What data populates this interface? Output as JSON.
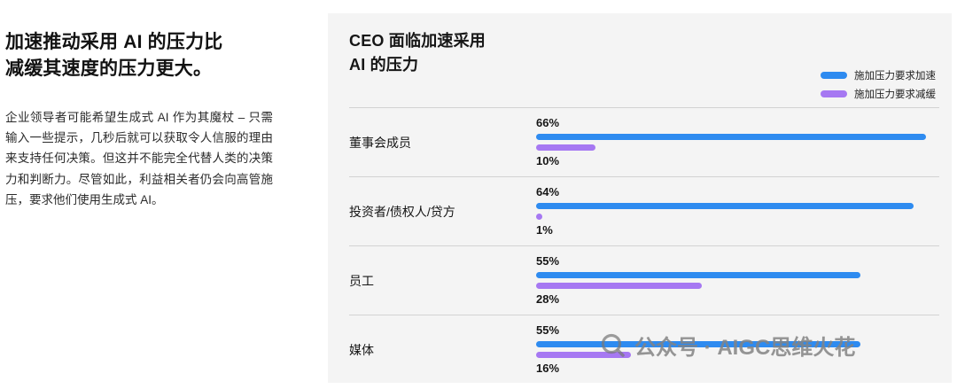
{
  "left_panel": {
    "heading": "加速推动采用 AI 的压力比\n减缓其速度的压力更大。",
    "body": "企业领导者可能希望生成式 AI 作为其魔杖 – 只需输入一些提示，几秒后就可以获取令人信服的理由来支持任何决策。但这并不能完全代替人类的决策力和判断力。尽管如此，利益相关者仍会向高管施压，要求他们使用生成式 AI。"
  },
  "chart": {
    "title": "CEO 面临加速采用\nAI 的压力",
    "panel_background": "#f4f4f4",
    "legend": [
      {
        "label": "施加压力要求加速",
        "color": "#2E8BF0"
      },
      {
        "label": "施加压力要求减缓",
        "color": "#A678F2"
      }
    ]
  },
  "chart_data": {
    "type": "bar",
    "orientation": "horizontal",
    "title": "CEO 面临加速采用 AI 的压力",
    "categories": [
      "董事会成员",
      "投资者/债权人/贷方",
      "员工",
      "媒体"
    ],
    "series": [
      {
        "name": "施加压力要求加速",
        "color": "#2E8BF0",
        "values": [
          66,
          64,
          55,
          55
        ]
      },
      {
        "name": "施加压力要求减缓",
        "color": "#A678F2",
        "values": [
          10,
          1,
          28,
          16
        ]
      }
    ],
    "value_suffix": "%",
    "xlim": [
      0,
      68
    ],
    "grid": false,
    "legend_position": "top-right"
  },
  "watermark": {
    "text": "公众号 · AIGC思维火花"
  }
}
